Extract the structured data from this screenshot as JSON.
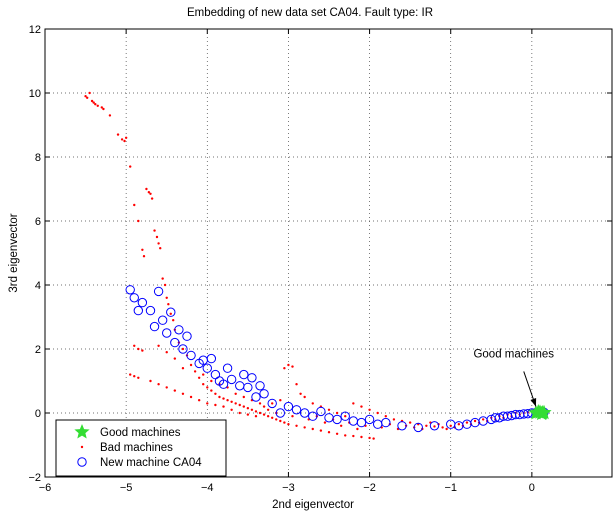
{
  "chart_data": {
    "type": "scatter",
    "title": "Embedding of new data set CA04. Fault type: IR",
    "xlabel": "2nd eigenvector",
    "ylabel": "3rd eigenvector",
    "xlim": [
      -6,
      1
    ],
    "ylim": [
      -2,
      12
    ],
    "xticks": [
      -6,
      -5,
      -4,
      -3,
      -2,
      -1,
      0
    ],
    "yticks": [
      -2,
      0,
      2,
      4,
      6,
      8,
      10,
      12
    ],
    "grid": true,
    "legend_position": "bottom-left",
    "series": [
      {
        "name": "Good machines",
        "marker": "star",
        "color": "#33dd33",
        "points": [
          [
            0.05,
            0.0
          ],
          [
            0.1,
            0.02
          ],
          [
            0.12,
            -0.02
          ],
          [
            0.15,
            0.01
          ],
          [
            0.08,
            0.03
          ],
          [
            0.13,
            0.0
          ]
        ]
      },
      {
        "name": "Bad machines",
        "marker": "dot",
        "color": "#ff0000",
        "points": [
          [
            -5.5,
            9.9
          ],
          [
            -5.48,
            9.85
          ],
          [
            -5.45,
            10.0
          ],
          [
            -5.42,
            9.75
          ],
          [
            -5.4,
            9.7
          ],
          [
            -5.38,
            9.65
          ],
          [
            -5.35,
            9.6
          ],
          [
            -5.3,
            9.55
          ],
          [
            -5.28,
            9.5
          ],
          [
            -5.2,
            9.3
          ],
          [
            -5.1,
            8.7
          ],
          [
            -5.05,
            8.55
          ],
          [
            -5.02,
            8.5
          ],
          [
            -5.0,
            8.6
          ],
          [
            -4.95,
            7.7
          ],
          [
            -4.9,
            6.5
          ],
          [
            -4.85,
            6.0
          ],
          [
            -4.8,
            5.1
          ],
          [
            -4.78,
            4.9
          ],
          [
            -4.75,
            7.0
          ],
          [
            -4.72,
            6.9
          ],
          [
            -4.7,
            6.85
          ],
          [
            -4.68,
            6.7
          ],
          [
            -4.65,
            5.7
          ],
          [
            -4.62,
            5.5
          ],
          [
            -4.6,
            5.3
          ],
          [
            -4.58,
            5.15
          ],
          [
            -4.55,
            4.2
          ],
          [
            -4.52,
            4.0
          ],
          [
            -4.5,
            3.6
          ],
          [
            -4.48,
            3.4
          ],
          [
            -4.45,
            3.1
          ],
          [
            -4.42,
            2.9
          ],
          [
            -4.4,
            2.6
          ],
          [
            -4.35,
            2.2
          ],
          [
            -4.3,
            2.0
          ],
          [
            -4.25,
            1.8
          ],
          [
            -4.2,
            1.5
          ],
          [
            -4.15,
            1.3
          ],
          [
            -4.1,
            1.1
          ],
          [
            -4.05,
            0.9
          ],
          [
            -4.0,
            0.8
          ],
          [
            -3.95,
            0.7
          ],
          [
            -3.9,
            0.6
          ],
          [
            -3.85,
            0.5
          ],
          [
            -3.8,
            0.45
          ],
          [
            -3.75,
            0.4
          ],
          [
            -3.7,
            0.35
          ],
          [
            -3.65,
            0.3
          ],
          [
            -3.6,
            0.25
          ],
          [
            -3.55,
            0.2
          ],
          [
            -3.5,
            0.15
          ],
          [
            -3.45,
            0.1
          ],
          [
            -3.4,
            0.05
          ],
          [
            -3.35,
            0.0
          ],
          [
            -3.3,
            -0.05
          ],
          [
            -3.25,
            -0.1
          ],
          [
            -3.2,
            -0.15
          ],
          [
            -3.15,
            -0.2
          ],
          [
            -3.1,
            -0.25
          ],
          [
            -3.05,
            -0.3
          ],
          [
            -3.0,
            -0.35
          ],
          [
            -2.9,
            -0.4
          ],
          [
            -2.8,
            -0.45
          ],
          [
            -2.7,
            -0.5
          ],
          [
            -2.6,
            -0.55
          ],
          [
            -2.5,
            -0.6
          ],
          [
            -2.4,
            -0.65
          ],
          [
            -2.3,
            -0.7
          ],
          [
            -2.2,
            -0.72
          ],
          [
            -2.1,
            -0.75
          ],
          [
            -2.0,
            -0.78
          ],
          [
            -1.95,
            -0.8
          ],
          [
            -4.9,
            2.1
          ],
          [
            -4.85,
            2.0
          ],
          [
            -4.8,
            1.95
          ],
          [
            -4.95,
            1.2
          ],
          [
            -4.9,
            1.15
          ],
          [
            -4.85,
            1.1
          ],
          [
            -4.7,
            1.0
          ],
          [
            -4.6,
            0.9
          ],
          [
            -4.5,
            0.8
          ],
          [
            -4.4,
            0.7
          ],
          [
            -4.3,
            0.6
          ],
          [
            -4.2,
            0.5
          ],
          [
            -4.1,
            0.4
          ],
          [
            -4.0,
            0.3
          ],
          [
            -3.9,
            0.25
          ],
          [
            -3.8,
            0.2
          ],
          [
            -3.7,
            0.1
          ],
          [
            -3.6,
            0.0
          ],
          [
            -3.5,
            -0.05
          ],
          [
            -3.4,
            -0.1
          ],
          [
            -3.3,
            0.2
          ],
          [
            -3.2,
            0.3
          ],
          [
            -3.1,
            0.4
          ],
          [
            -3.05,
            1.4
          ],
          [
            -3.0,
            1.5
          ],
          [
            -2.95,
            1.45
          ],
          [
            -2.9,
            0.9
          ],
          [
            -2.85,
            0.6
          ],
          [
            -2.8,
            0.5
          ],
          [
            -2.7,
            0.3
          ],
          [
            -2.6,
            0.2
          ],
          [
            -2.5,
            0.1
          ],
          [
            -2.4,
            0.0
          ],
          [
            -2.3,
            -0.1
          ],
          [
            -2.2,
            0.3
          ],
          [
            -2.1,
            0.2
          ],
          [
            -2.0,
            0.1
          ],
          [
            -1.9,
            0.0
          ],
          [
            -1.8,
            -0.1
          ],
          [
            -1.7,
            -0.2
          ],
          [
            -1.6,
            -0.25
          ],
          [
            -1.5,
            -0.3
          ],
          [
            -1.4,
            -0.35
          ],
          [
            -1.3,
            -0.4
          ],
          [
            -1.2,
            -0.42
          ],
          [
            -1.1,
            -0.45
          ],
          [
            -1.0,
            -0.4
          ],
          [
            -0.9,
            -0.35
          ],
          [
            -0.8,
            -0.3
          ],
          [
            -0.7,
            -0.25
          ],
          [
            -0.6,
            -0.2
          ],
          [
            -0.5,
            -0.15
          ],
          [
            -0.4,
            -0.1
          ],
          [
            -0.3,
            -0.05
          ],
          [
            -0.2,
            0.0
          ],
          [
            -0.1,
            0.0
          ],
          [
            -0.05,
            0.02
          ],
          [
            -4.6,
            2.1
          ],
          [
            -4.5,
            1.9
          ],
          [
            -4.4,
            1.7
          ],
          [
            -4.3,
            1.4
          ],
          [
            -4.05,
            1.2
          ],
          [
            -3.95,
            1.0
          ],
          [
            -3.85,
            0.9
          ],
          [
            -3.75,
            0.8
          ],
          [
            -3.65,
            0.6
          ],
          [
            -3.55,
            0.5
          ],
          [
            -3.45,
            0.4
          ],
          [
            -3.35,
            0.3
          ],
          [
            -3.25,
            0.1
          ],
          [
            -3.15,
            0.0
          ],
          [
            -2.95,
            -0.1
          ],
          [
            -2.75,
            -0.2
          ],
          [
            -2.65,
            -0.1
          ],
          [
            -2.55,
            -0.3
          ],
          [
            -2.45,
            -0.2
          ],
          [
            -2.35,
            -0.4
          ],
          [
            -2.25,
            -0.3
          ],
          [
            -2.15,
            -0.5
          ],
          [
            -2.05,
            -0.4
          ],
          [
            -1.85,
            -0.45
          ],
          [
            -1.75,
            -0.35
          ],
          [
            -1.65,
            -0.5
          ],
          [
            -1.55,
            -0.4
          ],
          [
            -1.45,
            -0.45
          ],
          [
            -1.35,
            -0.5
          ],
          [
            -1.25,
            -0.3
          ],
          [
            -1.15,
            -0.35
          ],
          [
            -1.05,
            -0.5
          ],
          [
            -0.95,
            -0.45
          ],
          [
            -0.85,
            -0.4
          ],
          [
            -0.75,
            -0.35
          ],
          [
            -0.65,
            -0.3
          ],
          [
            -0.55,
            -0.25
          ],
          [
            -0.45,
            -0.2
          ],
          [
            -0.35,
            -0.15
          ],
          [
            -0.25,
            -0.1
          ],
          [
            -0.15,
            -0.05
          ]
        ]
      },
      {
        "name": "New machine CA04",
        "marker": "circle",
        "color": "#0000ff",
        "points": [
          [
            -4.95,
            3.85
          ],
          [
            -4.9,
            3.6
          ],
          [
            -4.85,
            3.2
          ],
          [
            -4.8,
            3.45
          ],
          [
            -4.7,
            3.2
          ],
          [
            -4.65,
            2.7
          ],
          [
            -4.6,
            3.8
          ],
          [
            -4.55,
            2.9
          ],
          [
            -4.5,
            2.5
          ],
          [
            -4.45,
            3.15
          ],
          [
            -4.4,
            2.2
          ],
          [
            -4.35,
            2.6
          ],
          [
            -4.3,
            2.0
          ],
          [
            -4.25,
            2.4
          ],
          [
            -4.2,
            1.8
          ],
          [
            -4.1,
            1.55
          ],
          [
            -4.05,
            1.65
          ],
          [
            -4.0,
            1.4
          ],
          [
            -3.95,
            1.7
          ],
          [
            -3.9,
            1.2
          ],
          [
            -3.85,
            1.0
          ],
          [
            -3.8,
            0.9
          ],
          [
            -3.75,
            1.4
          ],
          [
            -3.7,
            1.05
          ],
          [
            -3.6,
            0.85
          ],
          [
            -3.55,
            1.2
          ],
          [
            -3.5,
            0.8
          ],
          [
            -3.45,
            1.1
          ],
          [
            -3.4,
            0.5
          ],
          [
            -3.35,
            0.85
          ],
          [
            -3.3,
            0.6
          ],
          [
            -3.2,
            0.3
          ],
          [
            -3.1,
            0.0
          ],
          [
            -3.0,
            0.2
          ],
          [
            -2.9,
            0.1
          ],
          [
            -2.8,
            0.0
          ],
          [
            -2.7,
            -0.1
          ],
          [
            -2.6,
            0.05
          ],
          [
            -2.5,
            -0.15
          ],
          [
            -2.4,
            -0.2
          ],
          [
            -2.3,
            -0.1
          ],
          [
            -2.2,
            -0.25
          ],
          [
            -2.1,
            -0.3
          ],
          [
            -2.0,
            -0.2
          ],
          [
            -1.9,
            -0.35
          ],
          [
            -1.8,
            -0.3
          ],
          [
            -1.6,
            -0.4
          ],
          [
            -1.4,
            -0.45
          ],
          [
            -1.2,
            -0.4
          ],
          [
            -1.0,
            -0.35
          ],
          [
            -0.9,
            -0.4
          ],
          [
            -0.8,
            -0.35
          ],
          [
            -0.7,
            -0.3
          ],
          [
            -0.6,
            -0.25
          ],
          [
            -0.5,
            -0.2
          ],
          [
            -0.45,
            -0.15
          ],
          [
            -0.4,
            -0.15
          ],
          [
            -0.35,
            -0.1
          ],
          [
            -0.3,
            -0.1
          ],
          [
            -0.25,
            -0.08
          ],
          [
            -0.2,
            -0.05
          ],
          [
            -0.15,
            -0.05
          ],
          [
            -0.1,
            -0.03
          ],
          [
            -0.05,
            -0.02
          ],
          [
            0.0,
            0.0
          ],
          [
            0.05,
            0.01
          ],
          [
            0.1,
            0.0
          ],
          [
            0.15,
            0.02
          ]
        ]
      }
    ],
    "annotation": {
      "text": "Good machines",
      "arrow_from": [
        -0.1,
        1.3
      ],
      "arrow_to": [
        0.05,
        0.2
      ]
    }
  }
}
